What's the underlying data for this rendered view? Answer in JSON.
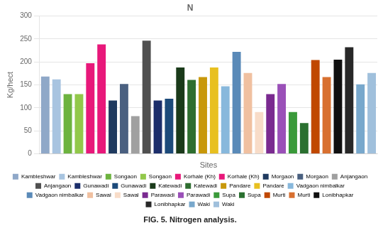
{
  "chart_data": {
    "type": "bar",
    "title": "N",
    "subtitle": "FIG. 5. Nitrogen analysis.",
    "xlabel": "Sites",
    "ylabel": "Kg/hect",
    "categories": [
      "Kambleshwar",
      "Kambleshwar",
      "Songaon",
      "Songaon",
      "Korhale (Kh)",
      "Korhale (Kh)",
      "Morgaon",
      "Morgaon",
      "Anjangaon",
      "Anjangaon",
      "Gunawadi",
      "Gunawadi",
      "Katewadi",
      "Katewadi",
      "Pandare",
      "Pandare",
      "Vadgaon nimbalkar",
      "Vadgaon nimbalkar",
      "Sawal",
      "Sawal",
      "Parawadi",
      "Parawadi",
      "Supa",
      "Supa",
      "Murti",
      "Murti",
      "Lonibhapkar",
      "Lonibhapkar",
      "Waki",
      "Waki"
    ],
    "values": [
      168,
      162,
      130,
      130,
      197,
      238,
      116,
      152,
      82,
      246,
      116,
      120,
      188,
      161,
      167,
      188,
      147,
      222,
      176,
      91,
      130,
      152,
      91,
      67,
      204,
      167,
      205,
      232,
      151,
      176
    ],
    "colors": [
      "#8fa8c8",
      "#a8c4e0",
      "#6db33f",
      "#92c84a",
      "#e8187a",
      "#e8187a",
      "#1f3a5f",
      "#4a6080",
      "#a0a0a0",
      "#505050",
      "#1c2e6b",
      "#1c4a7a",
      "#1a3a1a",
      "#2e6e30",
      "#c8980a",
      "#e8c020",
      "#88b8dc",
      "#5a8ab8",
      "#f0c0a0",
      "#f8dcc8",
      "#7a2a90",
      "#9a50b8",
      "#3a9a3a",
      "#2a7030",
      "#c04800",
      "#d87030",
      "#101010",
      "#282828",
      "#78a8cc",
      "#a0c0dc"
    ],
    "ylim": [
      0,
      300
    ],
    "yticks": [
      0,
      50,
      100,
      150,
      200,
      250,
      300
    ],
    "grid": true,
    "legend": "bottom",
    "tick_labels": "y"
  }
}
